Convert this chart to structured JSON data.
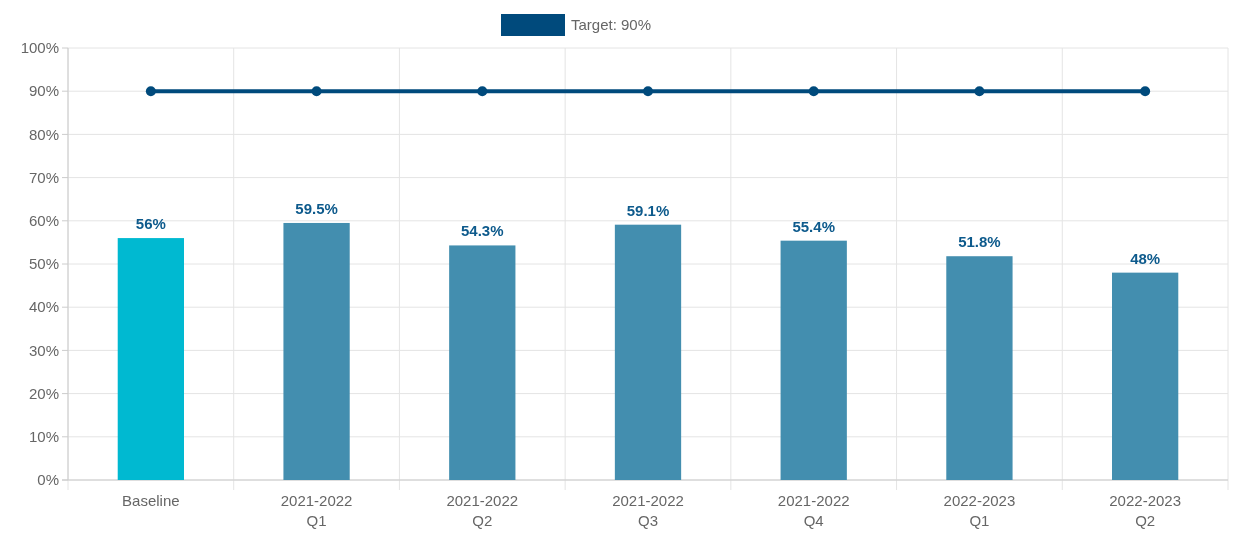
{
  "chart_data": {
    "type": "bar",
    "categories": [
      "Baseline",
      "2021-2022\nQ1",
      "2021-2022\nQ2",
      "2021-2022\nQ3",
      "2021-2022\nQ4",
      "2022-2023\nQ1",
      "2022-2023\nQ2"
    ],
    "series": [
      {
        "colors": [
          "#00b9d1",
          "#438eaf",
          "#438eaf",
          "#438eaf",
          "#438eaf",
          "#438eaf",
          "#438eaf"
        ],
        "values": [
          56,
          59.5,
          54.3,
          59.1,
          55.4,
          51.8,
          48
        ],
        "value_labels": [
          "56%",
          "59.5%",
          "54.3%",
          "59.1%",
          "55.4%",
          "51.8%",
          "48%"
        ]
      },
      {
        "type": "line",
        "name": "Target: 90%",
        "color": "#004a7c",
        "values": [
          90,
          90,
          90,
          90,
          90,
          90,
          90
        ],
        "marker": "circle"
      }
    ],
    "ylim": [
      0,
      100
    ],
    "yticks": [
      {
        "value": 0,
        "label": "0%"
      },
      {
        "value": 10,
        "label": "10%"
      },
      {
        "value": 20,
        "label": "20%"
      },
      {
        "value": 30,
        "label": "30%"
      },
      {
        "value": 40,
        "label": "40%"
      },
      {
        "value": 50,
        "label": "50%"
      },
      {
        "value": 60,
        "label": "60%"
      },
      {
        "value": 70,
        "label": "70%"
      },
      {
        "value": 80,
        "label": "80%"
      },
      {
        "value": 90,
        "label": "90%"
      },
      {
        "value": 100,
        "label": "100%"
      }
    ],
    "grid": true,
    "legend": "top"
  }
}
